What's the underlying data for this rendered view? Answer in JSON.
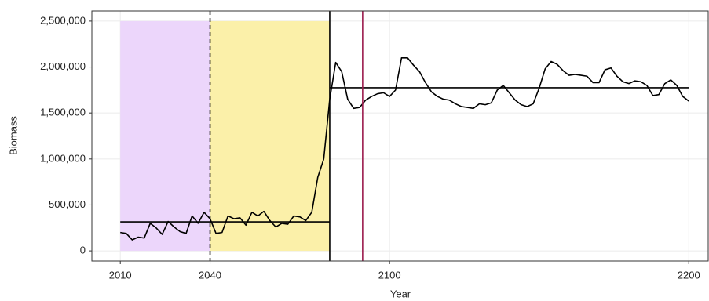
{
  "chart_data": {
    "type": "line",
    "xlabel": "Year",
    "ylabel": "Biomass",
    "xlim": [
      2000.5,
      2206.5
    ],
    "ylim": [
      -110000,
      2610000
    ],
    "xticks": [
      2010,
      2040,
      2100,
      2200
    ],
    "yticks": [
      0,
      {
        "value": 500000,
        "label": "500,000"
      },
      {
        "value": 1000000,
        "label": "1,000,000"
      },
      {
        "value": 1500000,
        "label": "1,500,000"
      },
      {
        "value": 2000000,
        "label": "2,000,000"
      },
      {
        "value": 2500000,
        "label": "2,500,000"
      }
    ],
    "grid": true,
    "regions": [
      {
        "x": [
          2010,
          2040
        ],
        "y": [
          0,
          2500000
        ],
        "color": "#ecd6fb"
      },
      {
        "x": [
          2040,
          2080
        ],
        "y": [
          0,
          2500000
        ],
        "color": "#fbf0a9"
      }
    ],
    "vlines": [
      {
        "x": 2040,
        "color": "#000000",
        "dashed": true
      },
      {
        "x": 2080,
        "color": "#000000",
        "dashed": false
      },
      {
        "x": 2091,
        "color": "#9b1b4d",
        "dashed": false
      }
    ],
    "hlines": [
      {
        "x": [
          2010,
          2080
        ],
        "y": 316000,
        "color": "#000000"
      },
      {
        "x": [
          2080,
          2200
        ],
        "y": 1775000,
        "color": "#000000"
      }
    ],
    "x": [
      2010,
      2012,
      2014,
      2016,
      2018,
      2020,
      2022,
      2024,
      2026,
      2028,
      2030,
      2032,
      2034,
      2036,
      2038,
      2040,
      2042,
      2044,
      2046,
      2048,
      2050,
      2052,
      2054,
      2056,
      2058,
      2060,
      2062,
      2064,
      2066,
      2068,
      2070,
      2072,
      2074,
      2076,
      2078,
      2080,
      2082,
      2084,
      2086,
      2088,
      2090,
      2092,
      2094,
      2096,
      2098,
      2100,
      2102,
      2104,
      2106,
      2108,
      2110,
      2112,
      2114,
      2116,
      2118,
      2120,
      2122,
      2124,
      2126,
      2128,
      2130,
      2132,
      2134,
      2136,
      2138,
      2140,
      2142,
      2144,
      2146,
      2148,
      2150,
      2152,
      2154,
      2156,
      2158,
      2160,
      2162,
      2164,
      2166,
      2168,
      2170,
      2172,
      2174,
      2176,
      2178,
      2180,
      2182,
      2184,
      2186,
      2188,
      2190,
      2192,
      2194,
      2196,
      2198,
      2200
    ],
    "series": [
      {
        "color": "#000000",
        "values": [
          200000,
          190000,
          120000,
          150000,
          140000,
          300000,
          250000,
          180000,
          320000,
          260000,
          210000,
          190000,
          380000,
          300000,
          420000,
          350000,
          190000,
          200000,
          380000,
          350000,
          360000,
          280000,
          420000,
          380000,
          430000,
          330000,
          260000,
          300000,
          290000,
          380000,
          370000,
          330000,
          420000,
          800000,
          1000000,
          1650000,
          2050000,
          1950000,
          1650000,
          1550000,
          1560000,
          1640000,
          1680000,
          1710000,
          1720000,
          1680000,
          1750000,
          2100000,
          2100000,
          2020000,
          1950000,
          1830000,
          1730000,
          1680000,
          1650000,
          1640000,
          1600000,
          1570000,
          1560000,
          1550000,
          1600000,
          1590000,
          1610000,
          1750000,
          1800000,
          1720000,
          1640000,
          1590000,
          1570000,
          1600000,
          1770000,
          1980000,
          2060000,
          2030000,
          1960000,
          1910000,
          1920000,
          1910000,
          1900000,
          1830000,
          1830000,
          1970000,
          1990000,
          1900000,
          1840000,
          1820000,
          1850000,
          1840000,
          1800000,
          1690000,
          1700000,
          1820000,
          1860000,
          1800000,
          1680000,
          1630000
        ]
      }
    ]
  }
}
